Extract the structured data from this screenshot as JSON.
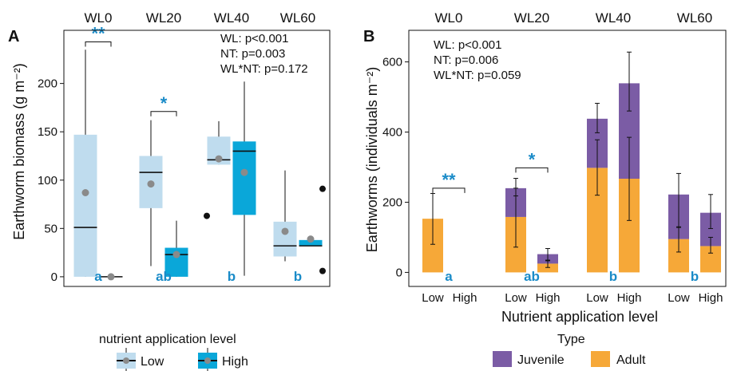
{
  "colors": {
    "low": "#bfdcee",
    "high": "#0aa7d9",
    "juvenile": "#7b5ca5",
    "adult": "#f6a838",
    "annotation": "#1a8bc8",
    "median_point": "#8a8a8a",
    "outlier": "#111111"
  },
  "chart_data": [
    {
      "panel": "A",
      "type": "box",
      "categories": [
        "WL0",
        "WL20",
        "WL40",
        "WL60"
      ],
      "ylabel": "Earthworm biomass (g m⁻²)",
      "ylim": [
        -10,
        255
      ],
      "yticks": [
        "0",
        "50",
        "100",
        "150",
        "200"
      ],
      "stats": [
        "WL: p<0.001",
        "NT: p=0.003",
        "WL*NT: p=0.172"
      ],
      "series": [
        {
          "name": "Low",
          "boxes": [
            {
              "min": 0,
              "q1": 0,
              "median": 51,
              "q3": 147,
              "max": 235,
              "mean": 87,
              "outliers": []
            },
            {
              "min": 11,
              "q1": 71,
              "median": 108,
              "q3": 125,
              "max": 162,
              "mean": 96,
              "outliers": []
            },
            {
              "min": 116,
              "q1": 116,
              "median": 121,
              "q3": 145,
              "max": 161,
              "mean": 122,
              "outliers": [
                63
              ]
            },
            {
              "min": 16,
              "q1": 21,
              "median": 32,
              "q3": 57,
              "max": 110,
              "mean": 47,
              "outliers": []
            }
          ]
        },
        {
          "name": "High",
          "boxes": [
            {
              "min": 0,
              "q1": 0,
              "median": 0,
              "q3": 0,
              "max": 0,
              "mean": 0,
              "outliers": []
            },
            {
              "min": 0,
              "q1": 0,
              "median": 23,
              "q3": 30,
              "max": 58,
              "mean": 23,
              "outliers": []
            },
            {
              "min": 1,
              "q1": 64,
              "median": 130,
              "q3": 140,
              "max": 202,
              "mean": 108,
              "outliers": []
            },
            {
              "min": 32,
              "q1": 32,
              "median": 32,
              "q3": 38,
              "max": 38,
              "mean": 39,
              "outliers": [
                91,
                6
              ]
            }
          ]
        }
      ],
      "group_letters": [
        "a",
        "ab",
        "b",
        "b"
      ],
      "significance": [
        {
          "group": "WL0",
          "label": "**",
          "y": 243
        },
        {
          "group": "WL20",
          "label": "*",
          "y": 171
        }
      ],
      "legend": {
        "title": "nutrient application level",
        "items": [
          "Low",
          "High"
        ]
      }
    },
    {
      "panel": "B",
      "type": "stacked-bar",
      "categories": [
        "WL0",
        "WL20",
        "WL40",
        "WL60"
      ],
      "xticks": [
        "Low",
        "High"
      ],
      "xlabel": "Nutrient application level",
      "ylabel": "Earthworms (individuals m⁻²)",
      "ylim": [
        -40,
        690
      ],
      "yticks": [
        "0",
        "200",
        "400",
        "600"
      ],
      "stats": [
        "WL: p<0.001",
        "NT: p=0.006",
        "WL*NT: p=0.059"
      ],
      "series": [
        {
          "name": "Adult",
          "values": [
            [
              153,
              0
            ],
            [
              158,
              25
            ],
            [
              298,
              267
            ],
            [
              95,
              75
            ]
          ]
        },
        {
          "name": "Juvenile",
          "values": [
            [
              0,
              0
            ],
            [
              82,
              27
            ],
            [
              140,
              272
            ],
            [
              127,
              95
            ]
          ]
        }
      ],
      "adult_error": [
        [
          [
            80,
            225
          ],
          [
            0,
            0
          ]
        ],
        [
          [
            72,
            240
          ],
          [
            14,
            35
          ]
        ],
        [
          [
            220,
            378
          ],
          [
            148,
            385
          ]
        ],
        [
          [
            58,
            130
          ],
          [
            55,
            100
          ]
        ]
      ],
      "total_error": [
        [
          [
            0,
            0
          ],
          [
            0,
            0
          ]
        ],
        [
          [
            218,
            268
          ],
          [
            33,
            68
          ]
        ],
        [
          [
            398,
            482
          ],
          [
            460,
            628
          ]
        ],
        [
          [
            128,
            282
          ],
          [
            125,
            222
          ]
        ]
      ],
      "group_letters": [
        "a",
        "ab",
        "b",
        "b"
      ],
      "significance": [
        {
          "group": "WL0",
          "label": "**",
          "y": 240
        },
        {
          "group": "WL20",
          "label": "*",
          "y": 298
        }
      ],
      "legend": {
        "title": "Type",
        "items": [
          "Juvenile",
          "Adult"
        ]
      }
    }
  ]
}
